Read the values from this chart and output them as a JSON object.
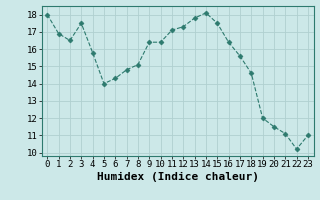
{
  "x": [
    0,
    1,
    2,
    3,
    4,
    5,
    6,
    7,
    8,
    9,
    10,
    11,
    12,
    13,
    14,
    15,
    16,
    17,
    18,
    19,
    20,
    21,
    22,
    23
  ],
  "y": [
    18.0,
    16.9,
    16.5,
    17.5,
    15.8,
    14.0,
    14.3,
    14.8,
    15.1,
    16.4,
    16.4,
    17.1,
    17.3,
    17.8,
    18.1,
    17.5,
    16.4,
    15.6,
    14.6,
    12.0,
    11.5,
    11.1,
    10.2,
    11.0
  ],
  "xlabel": "Humidex (Indice chaleur)",
  "ylim": [
    9.8,
    18.5
  ],
  "xlim": [
    -0.5,
    23.5
  ],
  "yticks": [
    10,
    11,
    12,
    13,
    14,
    15,
    16,
    17,
    18
  ],
  "xticks": [
    0,
    1,
    2,
    3,
    4,
    5,
    6,
    7,
    8,
    9,
    10,
    11,
    12,
    13,
    14,
    15,
    16,
    17,
    18,
    19,
    20,
    21,
    22,
    23
  ],
  "line_color": "#2d7a6e",
  "marker": "D",
  "marker_size": 2.5,
  "bg_color": "#cce8e8",
  "grid_color": "#b0d0d0",
  "xlabel_fontsize": 8,
  "tick_fontsize": 6.5
}
